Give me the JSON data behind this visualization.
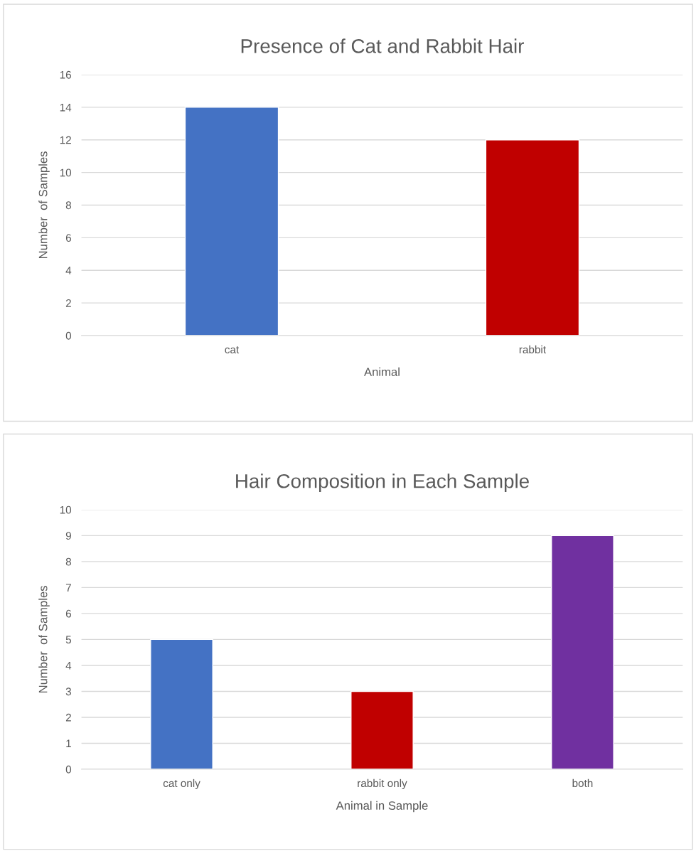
{
  "chart_data": [
    {
      "type": "bar",
      "title": "Presence of Cat and Rabbit Hair",
      "xlabel": "Animal",
      "ylabel": "Number  of Samples",
      "categories": [
        "cat",
        "rabbit"
      ],
      "values": [
        14,
        12
      ],
      "colors": [
        "#4472c4",
        "#c00000"
      ],
      "ylim": [
        0,
        16
      ],
      "yticks": [
        0,
        2,
        4,
        6,
        8,
        10,
        12,
        14,
        16
      ],
      "grid": "y",
      "legend": false
    },
    {
      "type": "bar",
      "title": "Hair Composition in Each Sample",
      "xlabel": "Animal in Sample",
      "ylabel": "Number  of Samples",
      "categories": [
        "cat only",
        "rabbit only",
        "both"
      ],
      "values": [
        5,
        3,
        9
      ],
      "colors": [
        "#4472c4",
        "#c00000",
        "#7030a0"
      ],
      "ylim": [
        0,
        10
      ],
      "yticks": [
        0,
        1,
        2,
        3,
        4,
        5,
        6,
        7,
        8,
        9,
        10
      ],
      "grid": "y",
      "legend": false
    }
  ]
}
